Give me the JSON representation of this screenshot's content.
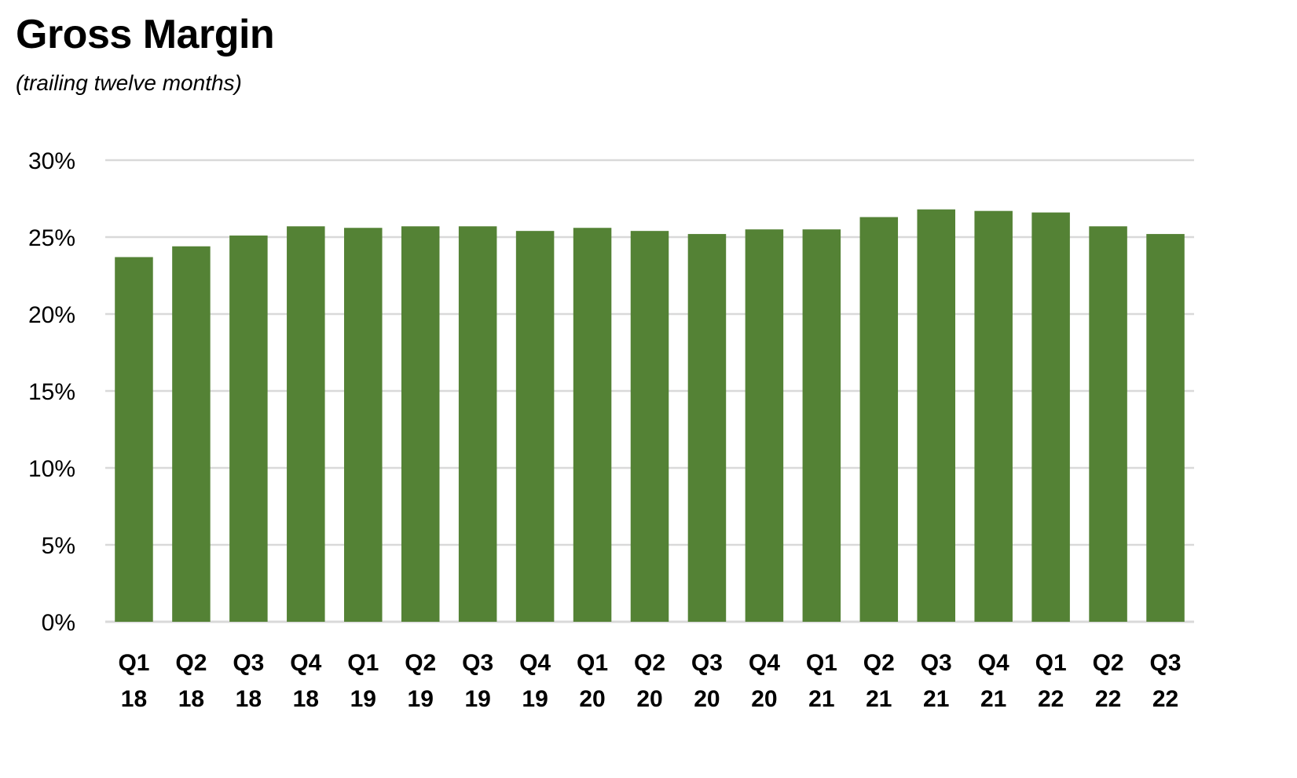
{
  "chart_data": {
    "type": "bar",
    "title": "Gross Margin",
    "subtitle": "(trailing twelve months)",
    "xlabel": "",
    "ylabel": "",
    "categories": [
      [
        "Q1",
        "18"
      ],
      [
        "Q2",
        "18"
      ],
      [
        "Q3",
        "18"
      ],
      [
        "Q4",
        "18"
      ],
      [
        "Q1",
        "19"
      ],
      [
        "Q2",
        "19"
      ],
      [
        "Q3",
        "19"
      ],
      [
        "Q4",
        "19"
      ],
      [
        "Q1",
        "20"
      ],
      [
        "Q2",
        "20"
      ],
      [
        "Q3",
        "20"
      ],
      [
        "Q4",
        "20"
      ],
      [
        "Q1",
        "21"
      ],
      [
        "Q2",
        "21"
      ],
      [
        "Q3",
        "21"
      ],
      [
        "Q4",
        "21"
      ],
      [
        "Q1",
        "22"
      ],
      [
        "Q2",
        "22"
      ],
      [
        "Q3",
        "22"
      ]
    ],
    "values": [
      23.7,
      24.4,
      25.1,
      25.7,
      25.6,
      25.7,
      25.7,
      25.4,
      25.6,
      25.4,
      25.2,
      25.5,
      25.5,
      26.3,
      26.8,
      26.7,
      26.6,
      25.7,
      25.2
    ],
    "ylim": [
      0,
      30
    ],
    "yticks": [
      0,
      5,
      10,
      15,
      20,
      25,
      30
    ],
    "ytick_labels": [
      "0%",
      "5%",
      "10%",
      "15%",
      "20%",
      "25%",
      "30%"
    ],
    "grid": true,
    "legend": "none",
    "bar_color": "#548235",
    "grid_color": "#d9d9d9"
  }
}
